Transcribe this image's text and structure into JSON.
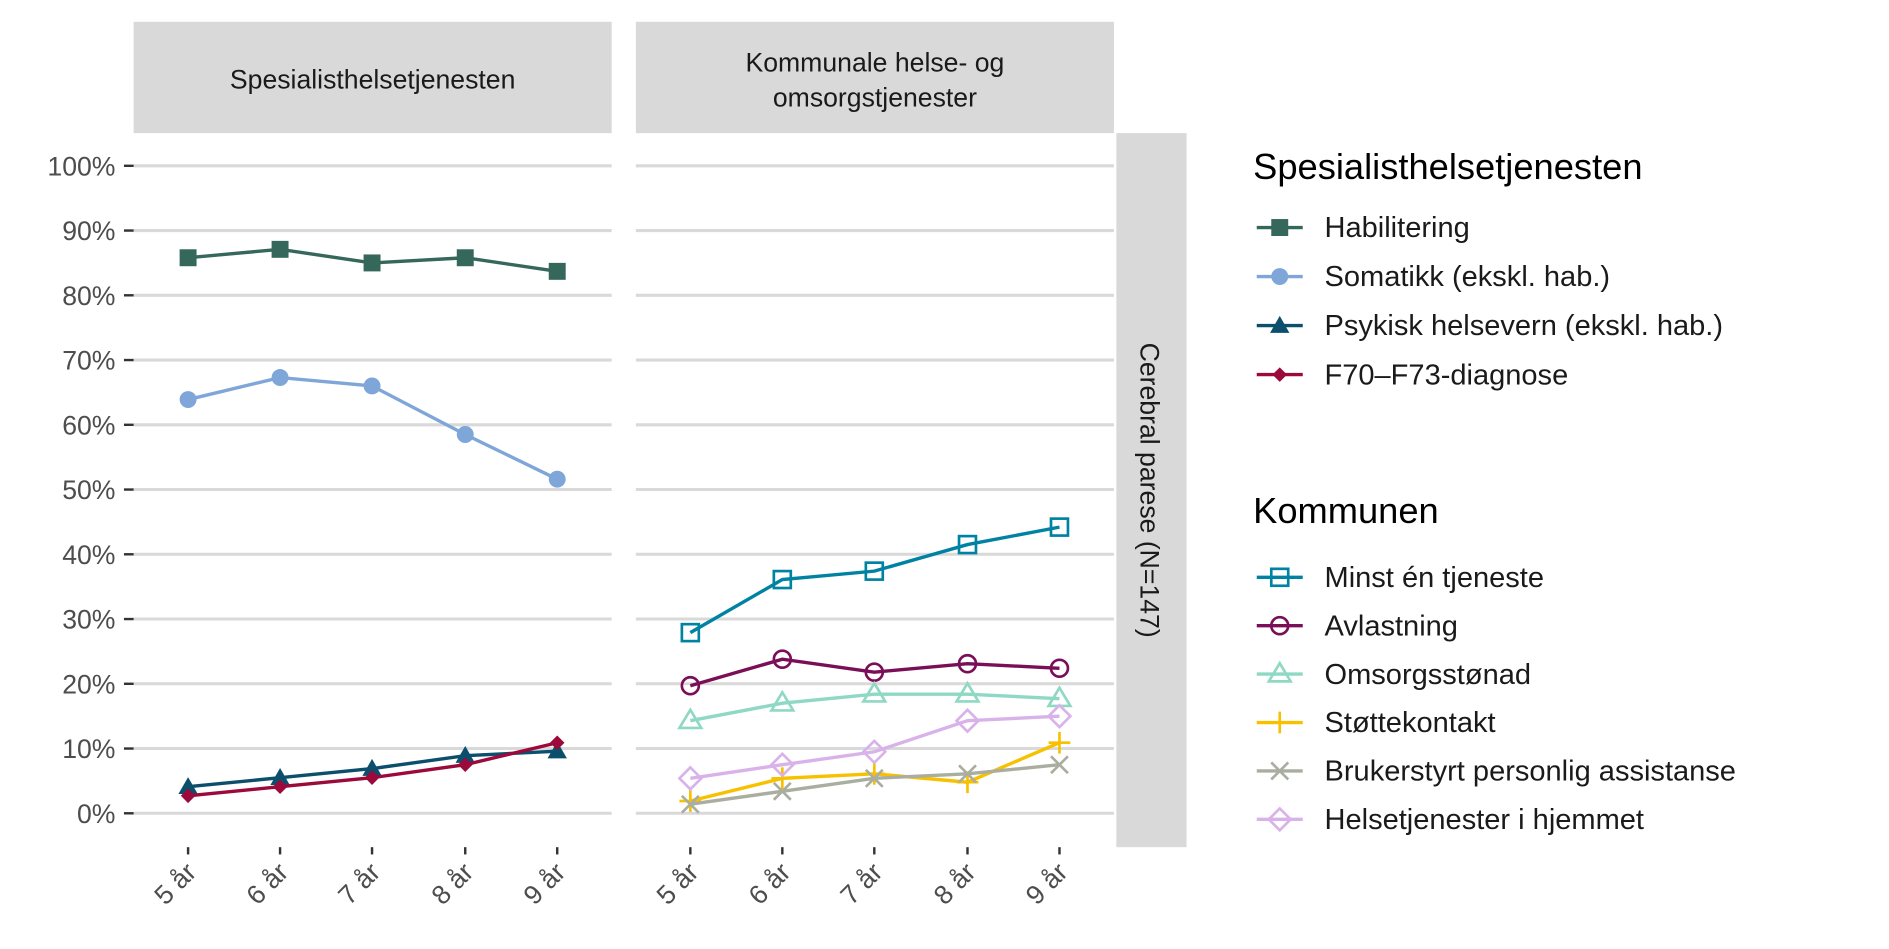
{
  "chart_data": {
    "type": "line",
    "row_facet": "Cerebral parese (N=147)",
    "panels": [
      {
        "title": "Spesialisthelsetjenesten",
        "series": [
          {
            "name": "Habilitering",
            "color": "#35675a",
            "marker": "square-filled",
            "values": [
              85.8,
              87.1,
              85.0,
              85.8,
              83.7
            ]
          },
          {
            "name": "Somatikk (ekskl. hab.)",
            "color": "#7fa6d8",
            "marker": "circle-filled",
            "values": [
              63.9,
              67.3,
              66.0,
              58.5,
              51.6
            ]
          },
          {
            "name": "Psykisk helsevern (ekskl. hab.)",
            "color": "#0b4f6c",
            "marker": "triangle-filled",
            "values": [
              4.1,
              5.5,
              6.9,
              8.9,
              9.6
            ]
          },
          {
            "name": "F70–F73-diagnose",
            "color": "#9b0a3b",
            "marker": "diamond-filled",
            "values": [
              2.7,
              4.1,
              5.5,
              7.5,
              10.9
            ]
          }
        ]
      },
      {
        "title": "Kommunale helse- og\nomsorgstjenester",
        "title_lines": [
          "Kommunale helse- og",
          "omsorgstjenester"
        ],
        "series": [
          {
            "name": "Minst én tjeneste",
            "color": "#0082a3",
            "marker": "square-open",
            "values": [
              27.9,
              36.1,
              37.4,
              41.5,
              44.2
            ]
          },
          {
            "name": "Avlastning",
            "color": "#7a0f57",
            "marker": "circle-open",
            "values": [
              19.7,
              23.8,
              21.8,
              23.1,
              22.4
            ]
          },
          {
            "name": "Omsorgsstønad",
            "color": "#8fd8c4",
            "marker": "triangle-open",
            "values": [
              14.3,
              17.0,
              18.4,
              18.4,
              17.7
            ]
          },
          {
            "name": "Støttekontakt",
            "color": "#f8c100",
            "marker": "plus",
            "values": [
              1.9,
              5.4,
              6.1,
              4.8,
              10.9
            ]
          },
          {
            "name": "Brukerstyrt personlig assistanse",
            "color": "#aaaea0",
            "marker": "cross",
            "values": [
              1.4,
              3.4,
              5.4,
              6.1,
              7.5
            ]
          },
          {
            "name": "Helsetjenester i hjemmet",
            "color": "#d9b2ea",
            "marker": "diamond-open",
            "values": [
              5.4,
              7.5,
              9.5,
              14.3,
              15.0
            ]
          }
        ]
      }
    ],
    "categories": [
      "5 år",
      "6 år",
      "7 år",
      "8 år",
      "9 år"
    ],
    "yticks": [
      "0%",
      "10%",
      "20%",
      "30%",
      "40%",
      "50%",
      "60%",
      "70%",
      "80%",
      "90%",
      "100%"
    ],
    "ylim": [
      0,
      100
    ],
    "grid": true,
    "legend_placement": "right",
    "legends": [
      {
        "title": "Spesialisthelsetjenesten",
        "panel": 0
      },
      {
        "title": "Kommunen",
        "panel": 1
      }
    ],
    "colors": {
      "strip": "#d9d9d9",
      "grid": "#d9d9d9"
    }
  }
}
